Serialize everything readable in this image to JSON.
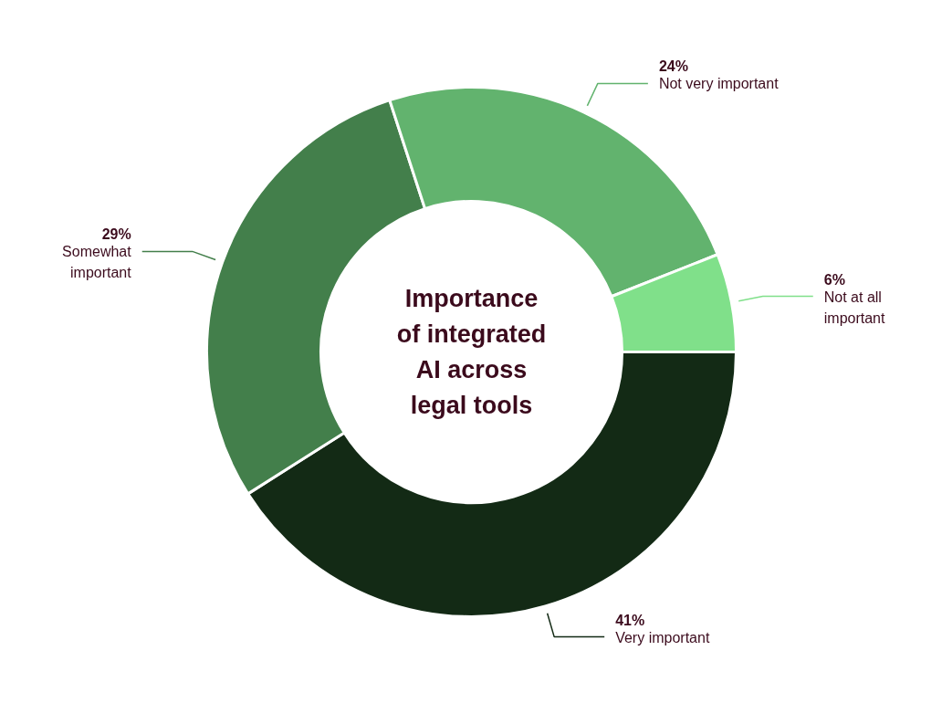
{
  "chart_data": {
    "type": "donut",
    "title": "Importance of integrated AI across legal tools",
    "categories": [
      "Very important",
      "Somewhat important",
      "Not very important",
      "Not at all important"
    ],
    "values": [
      41,
      29,
      24,
      6
    ],
    "colors": [
      "#132a15",
      "#437f4b",
      "#62b36e",
      "#80e08a"
    ],
    "value_labels": [
      "41%",
      "29%",
      "24%",
      "6%"
    ]
  }
}
